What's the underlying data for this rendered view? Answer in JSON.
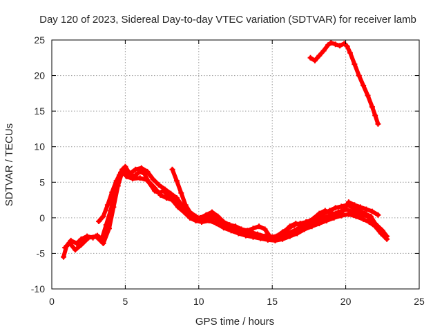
{
  "chart_data": {
    "type": "line",
    "title": "Day 120 of 2023, Sidereal Day-to-day VTEC variation (SDTVAR) for receiver lamb",
    "xlabel": "GPS time / hours",
    "ylabel": "SDTVAR / TECUs",
    "xlim": [
      0,
      25
    ],
    "ylim": [
      -10,
      25
    ],
    "xticks": [
      0,
      5,
      10,
      15,
      20,
      25
    ],
    "yticks": [
      -10,
      -5,
      0,
      5,
      10,
      15,
      20,
      25
    ],
    "grid": true,
    "series_color": "#ff0000",
    "series": [
      {
        "name": "track-1",
        "x": [
          0.8,
          1.0,
          1.3,
          1.7,
          2.0,
          2.4,
          2.8,
          3.1,
          3.4,
          3.7,
          4.0,
          4.3,
          4.6,
          4.8,
          5.0,
          5.3,
          5.7,
          6.0,
          6.3,
          6.6,
          7.0,
          7.3,
          7.6,
          8.0,
          8.4,
          8.8,
          9.2,
          9.6,
          10.0,
          10.5,
          11.0,
          11.5,
          12.0,
          12.5,
          13.0,
          13.5,
          14.0,
          14.5,
          15.0,
          15.5,
          16.0,
          16.5,
          17.0,
          17.5,
          18.0,
          18.5,
          19.0,
          19.5,
          20.0,
          20.5,
          21.0,
          21.5,
          22.0,
          22.5,
          22.8
        ],
        "y": [
          -5.5,
          -4.0,
          -3.2,
          -3.6,
          -3.0,
          -2.6,
          -2.8,
          -2.5,
          -3.0,
          -1.0,
          1.0,
          3.5,
          6.0,
          6.8,
          6.3,
          5.8,
          6.0,
          6.5,
          6.2,
          5.0,
          3.8,
          3.5,
          3.8,
          3.0,
          2.5,
          1.8,
          1.0,
          0.2,
          -0.3,
          -0.2,
          0.0,
          -0.5,
          -1.2,
          -1.6,
          -1.8,
          -2.0,
          -2.3,
          -2.6,
          -2.8,
          -2.6,
          -2.2,
          -1.8,
          -1.2,
          -0.9,
          -0.4,
          0.0,
          0.4,
          0.8,
          1.2,
          0.8,
          0.5,
          0.2,
          -0.8,
          -1.8,
          -2.6
        ]
      },
      {
        "name": "track-2",
        "x": [
          0.9,
          1.2,
          1.6,
          2.0,
          2.5,
          3.0,
          3.5,
          3.9,
          4.2,
          4.5,
          4.8,
          5.1,
          5.5,
          6.0,
          6.5,
          7.0,
          7.4,
          7.8,
          8.2,
          8.6,
          9.0,
          9.4,
          9.8,
          10.2,
          10.7,
          11.2,
          11.7,
          12.2,
          12.7,
          13.2,
          13.7,
          14.2,
          14.7,
          15.2,
          15.7,
          16.2,
          16.7,
          17.2,
          17.7,
          18.2,
          18.7,
          19.2,
          19.7,
          20.2,
          20.7,
          21.2,
          21.6,
          22.0,
          22.4,
          22.8
        ],
        "y": [
          -4.2,
          -3.5,
          -4.5,
          -3.8,
          -2.8,
          -2.6,
          -3.6,
          -1.5,
          1.5,
          4.5,
          6.5,
          5.8,
          5.5,
          5.6,
          5.3,
          4.2,
          3.2,
          2.8,
          2.5,
          1.5,
          0.8,
          0.0,
          -0.4,
          -0.6,
          -0.4,
          -0.8,
          -1.4,
          -1.8,
          -2.2,
          -2.5,
          -2.7,
          -2.9,
          -3.1,
          -3.2,
          -3.0,
          -2.6,
          -2.2,
          -1.6,
          -1.2,
          -0.8,
          -0.4,
          0.0,
          0.3,
          0.5,
          0.2,
          -0.2,
          -0.6,
          -1.2,
          -2.2,
          -3.0
        ]
      },
      {
        "name": "track-3",
        "x": [
          3.2,
          3.5,
          3.8,
          4.1,
          4.4,
          4.7,
          5.0,
          5.3,
          5.7,
          6.1,
          6.5,
          6.9,
          7.3,
          7.7,
          8.1,
          8.5,
          8.9,
          9.3,
          9.7,
          10.1,
          10.5,
          10.9,
          11.3,
          11.7,
          12.1,
          12.5,
          12.9,
          13.3,
          13.7,
          14.1,
          14.5,
          14.9,
          15.3,
          15.7,
          16.1,
          16.5,
          16.9,
          17.3,
          17.7,
          18.1,
          18.5,
          18.9,
          19.3,
          19.7,
          20.1,
          20.5,
          20.9,
          21.3,
          21.7,
          22.0
        ],
        "y": [
          -0.5,
          0.2,
          1.8,
          3.6,
          5.2,
          6.4,
          7.2,
          6.2,
          6.8,
          7.0,
          6.5,
          5.4,
          4.6,
          4.0,
          3.4,
          2.8,
          1.6,
          0.6,
          0.0,
          0.0,
          0.4,
          0.8,
          0.2,
          -0.6,
          -1.0,
          -1.2,
          -1.6,
          -1.8,
          -1.5,
          -1.2,
          -1.6,
          -2.8,
          -2.6,
          -2.0,
          -1.5,
          -1.0,
          -0.8,
          -0.6,
          -0.4,
          0.0,
          0.6,
          1.0,
          1.4,
          1.6,
          1.8,
          1.4,
          1.0,
          0.6,
          0.2,
          -0.8
        ]
      },
      {
        "name": "track-4",
        "x": [
          8.2,
          8.5,
          8.8,
          9.1,
          9.4,
          9.8,
          10.2,
          10.6,
          11.0,
          11.4,
          11.8,
          12.2,
          12.6,
          13.0,
          13.4,
          13.8,
          14.2,
          14.6,
          15.0,
          15.4,
          15.8,
          16.2,
          16.6,
          17.0,
          17.4,
          17.8,
          18.2,
          18.6,
          19.0,
          19.4,
          19.8,
          20.2,
          20.6,
          21.0,
          21.4,
          21.8,
          22.2
        ],
        "y": [
          6.8,
          5.2,
          3.5,
          1.8,
          0.8,
          0.2,
          -0.2,
          0.0,
          0.3,
          -0.3,
          -0.8,
          -1.2,
          -1.5,
          -1.8,
          -2.1,
          -2.4,
          -2.5,
          -2.6,
          -2.7,
          -2.5,
          -2.0,
          -1.2,
          -0.8,
          -1.0,
          -0.6,
          -0.1,
          0.6,
          1.0,
          0.7,
          0.4,
          0.9,
          2.2,
          1.8,
          1.5,
          1.2,
          0.9,
          0.4
        ]
      },
      {
        "name": "track-5",
        "x": [
          17.6,
          17.9,
          18.2,
          18.5,
          18.8,
          19.0,
          19.3,
          19.6,
          19.9,
          20.1,
          20.3,
          20.6,
          20.9,
          21.2,
          21.5,
          21.8,
          22.0,
          22.2
        ],
        "y": [
          22.5,
          22.1,
          22.8,
          23.5,
          24.3,
          24.6,
          24.4,
          24.2,
          24.5,
          24.1,
          23.2,
          21.6,
          20.0,
          18.6,
          17.2,
          15.6,
          14.4,
          13.2
        ]
      }
    ]
  }
}
